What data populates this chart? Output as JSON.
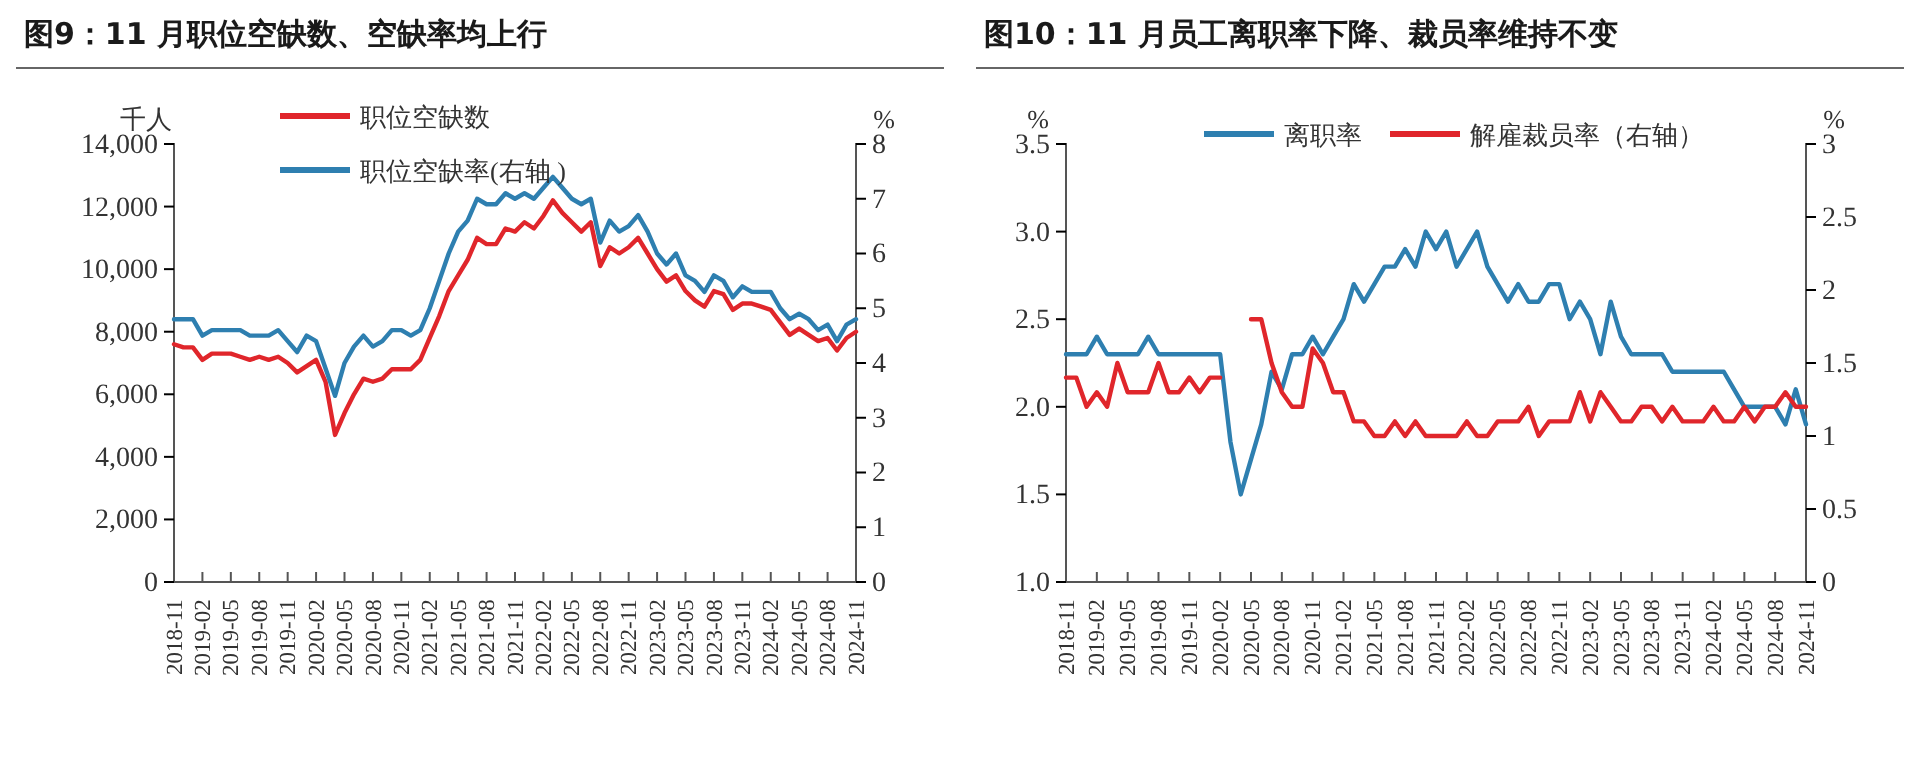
{
  "chart_data": [
    {
      "type": "line",
      "title": "图9：11 月职位空缺数、空缺率均上行",
      "ylabel": "千人",
      "y2label": "%",
      "categories": [
        "2018-11",
        null,
        null,
        "2019-02",
        null,
        null,
        "2019-05",
        null,
        null,
        "2019-08",
        null,
        null,
        "2019-11",
        null,
        null,
        "2020-02",
        null,
        null,
        "2020-05",
        null,
        null,
        "2020-08",
        null,
        null,
        "2020-11",
        null,
        null,
        "2021-02",
        null,
        null,
        "2021-05",
        null,
        null,
        "2021-08",
        null,
        null,
        "2021-11",
        null,
        null,
        "2022-02",
        null,
        null,
        "2022-05",
        null,
        null,
        "2022-08",
        null,
        null,
        "2022-11",
        null,
        null,
        "2023-02",
        null,
        null,
        "2023-05",
        null,
        null,
        "2023-08",
        null,
        null,
        "2023-11",
        null,
        null,
        "2024-02",
        null,
        null,
        "2024-05",
        null,
        null,
        "2024-08",
        null,
        null,
        "2024-11"
      ],
      "series": [
        {
          "name": "职位空缺数",
          "color": "#e0262b",
          "values": [
            7600,
            7500,
            7500,
            7100,
            7300,
            7300,
            7300,
            7200,
            7100,
            7200,
            7100,
            7200,
            7000,
            6700,
            6900,
            7100,
            6400,
            4700,
            5400,
            6000,
            6500,
            6400,
            6500,
            6800,
            6800,
            6800,
            7100,
            7800,
            8500,
            9300,
            9800,
            10300,
            11000,
            10800,
            10800,
            11300,
            11200,
            11500,
            11300,
            11700,
            12200,
            11800,
            11500,
            11200,
            11500,
            10100,
            10700,
            10500,
            10700,
            11000,
            10500,
            10000,
            9600,
            9800,
            9300,
            9000,
            8800,
            9300,
            9200,
            8700,
            8900,
            8900,
            8800,
            8700,
            8300,
            7900,
            8100,
            7900,
            7700,
            7800,
            7400,
            7800,
            8000
          ]
        },
        {
          "name": "职位空缺率(右轴 )",
          "color": "#2e7fb0",
          "axis": "y2",
          "values": [
            4.8,
            4.8,
            4.8,
            4.5,
            4.6,
            4.6,
            4.6,
            4.6,
            4.5,
            4.5,
            4.5,
            4.6,
            4.4,
            4.2,
            4.5,
            4.4,
            3.9,
            3.4,
            4.0,
            4.3,
            4.5,
            4.3,
            4.4,
            4.6,
            4.6,
            4.5,
            4.6,
            5.0,
            5.5,
            6.0,
            6.4,
            6.6,
            7.0,
            6.9,
            6.9,
            7.1,
            7.0,
            7.1,
            7.0,
            7.2,
            7.4,
            7.2,
            7.0,
            6.9,
            7.0,
            6.2,
            6.6,
            6.4,
            6.5,
            6.7,
            6.4,
            6.0,
            5.8,
            6.0,
            5.6,
            5.5,
            5.3,
            5.6,
            5.5,
            5.2,
            5.4,
            5.3,
            5.3,
            5.3,
            5.0,
            4.8,
            4.9,
            4.8,
            4.6,
            4.7,
            4.4,
            4.7,
            4.8
          ]
        }
      ],
      "ylim": [
        0,
        14000
      ],
      "yticks": [
        {
          "value": 0,
          "label": "0"
        },
        {
          "value": 2000,
          "label": "2,000"
        },
        {
          "value": 4000,
          "label": "4,000"
        },
        {
          "value": 6000,
          "label": "6,000"
        },
        {
          "value": 8000,
          "label": "8,000"
        },
        {
          "value": 10000,
          "label": "10,000"
        },
        {
          "value": 12000,
          "label": "12,000"
        },
        {
          "value": 14000,
          "label": "14,000"
        }
      ],
      "y2lim": [
        0,
        8
      ],
      "y2ticks": [
        0,
        1,
        2,
        3,
        4,
        5,
        6,
        7,
        8
      ],
      "legend": "top",
      "grid": false
    },
    {
      "type": "line",
      "title": "图10：11 月员工离职率下降、裁员率维持不变",
      "ylabel": "%",
      "y2label": "%",
      "categories": [
        "2018-11",
        null,
        null,
        "2019-02",
        null,
        null,
        "2019-05",
        null,
        null,
        "2019-08",
        null,
        null,
        "2019-11",
        null,
        null,
        "2020-02",
        null,
        null,
        "2020-05",
        null,
        null,
        "2020-08",
        null,
        null,
        "2020-11",
        null,
        null,
        "2021-02",
        null,
        null,
        "2021-05",
        null,
        null,
        "2021-08",
        null,
        null,
        "2021-11",
        null,
        null,
        "2022-02",
        null,
        null,
        "2022-05",
        null,
        null,
        "2022-08",
        null,
        null,
        "2022-11",
        null,
        null,
        "2023-02",
        null,
        null,
        "2023-05",
        null,
        null,
        "2023-08",
        null,
        null,
        "2023-11",
        null,
        null,
        "2024-02",
        null,
        null,
        "2024-05",
        null,
        null,
        "2024-08",
        null,
        null,
        "2024-11"
      ],
      "series": [
        {
          "name": "离职率",
          "color": "#2e7fb0",
          "values": [
            2.3,
            2.3,
            2.3,
            2.4,
            2.3,
            2.3,
            2.3,
            2.3,
            2.4,
            2.3,
            2.3,
            2.3,
            2.3,
            2.3,
            2.3,
            2.3,
            1.8,
            1.5,
            1.7,
            1.9,
            2.2,
            2.1,
            2.3,
            2.3,
            2.4,
            2.3,
            2.4,
            2.5,
            2.7,
            2.6,
            2.7,
            2.8,
            2.8,
            2.9,
            2.8,
            3.0,
            2.9,
            3.0,
            2.8,
            2.9,
            3.0,
            2.8,
            2.7,
            2.6,
            2.7,
            2.6,
            2.6,
            2.7,
            2.7,
            2.5,
            2.6,
            2.5,
            2.3,
            2.6,
            2.4,
            2.3,
            2.3,
            2.3,
            2.3,
            2.2,
            2.2,
            2.2,
            2.2,
            2.2,
            2.2,
            2.1,
            2.0,
            2.0,
            2.0,
            2.0,
            1.9,
            2.1,
            1.9
          ]
        },
        {
          "name": "解雇裁员率（右轴）",
          "color": "#e0262b",
          "axis": "y2",
          "values": [
            1.4,
            1.4,
            1.2,
            1.3,
            1.2,
            1.5,
            1.3,
            1.3,
            1.3,
            1.5,
            1.3,
            1.3,
            1.4,
            1.3,
            1.4,
            1.4,
            null,
            null,
            1.8,
            1.8,
            1.5,
            1.3,
            1.2,
            1.2,
            1.6,
            1.5,
            1.3,
            1.3,
            1.1,
            1.1,
            1.0,
            1.0,
            1.1,
            1.0,
            1.1,
            1.0,
            1.0,
            1.0,
            1.0,
            1.1,
            1.0,
            1.0,
            1.1,
            1.1,
            1.1,
            1.2,
            1.0,
            1.1,
            1.1,
            1.1,
            1.3,
            1.1,
            1.3,
            1.2,
            1.1,
            1.1,
            1.2,
            1.2,
            1.1,
            1.2,
            1.1,
            1.1,
            1.1,
            1.2,
            1.1,
            1.1,
            1.2,
            1.1,
            1.2,
            1.2,
            1.3,
            1.2,
            1.2
          ]
        }
      ],
      "ylim": [
        1,
        3.5
      ],
      "yticks": [
        {
          "value": 1,
          "label": "1.0"
        },
        {
          "value": 1.5,
          "label": "1.5"
        },
        {
          "value": 2,
          "label": "2.0"
        },
        {
          "value": 2.5,
          "label": "2.5"
        },
        {
          "value": 3,
          "label": "3.0"
        },
        {
          "value": 3.5,
          "label": "3.5"
        }
      ],
      "y2lim": [
        0,
        3
      ],
      "y2ticks": [
        0,
        0.5,
        1,
        1.5,
        2,
        2.5,
        3
      ],
      "legend": "top",
      "grid": false
    }
  ]
}
